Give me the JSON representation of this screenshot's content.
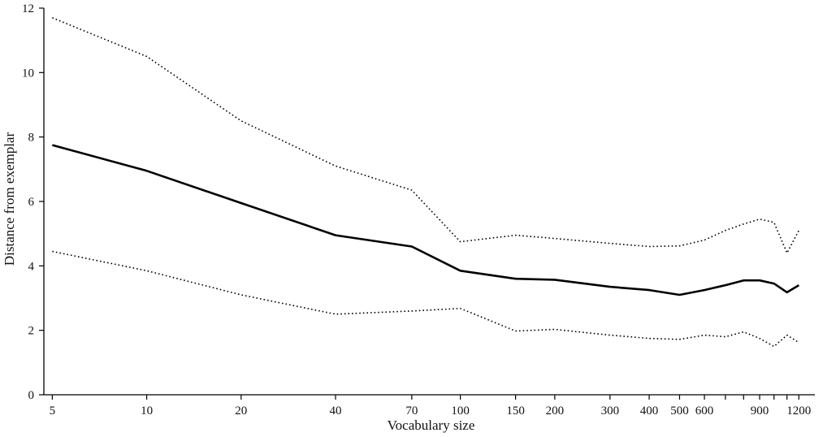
{
  "chart_data": {
    "type": "line",
    "title": "",
    "xlabel": "Vocabulary size",
    "ylabel": "Distance from exemplar",
    "x_scale": "log",
    "xlim": [
      4.7,
      1350
    ],
    "ylim": [
      0,
      12
    ],
    "grid": false,
    "legend": "none",
    "x": [
      5,
      10,
      20,
      40,
      70,
      100,
      150,
      200,
      300,
      400,
      500,
      600,
      700,
      800,
      900,
      1000,
      1100,
      1200
    ],
    "x_ticks": [
      5,
      10,
      20,
      40,
      70,
      100,
      150,
      200,
      300,
      400,
      500,
      600,
      700,
      800,
      900,
      1000,
      1100,
      1200
    ],
    "x_tick_labels": [
      "5",
      "10",
      "20",
      "40",
      "70",
      "100",
      "150",
      "200",
      "300",
      "400",
      "500",
      "600",
      "",
      "",
      "900",
      "",
      "",
      "1200"
    ],
    "y_ticks": [
      0,
      2,
      4,
      6,
      8,
      10,
      12
    ],
    "y_tick_labels": [
      "0",
      "2",
      "4",
      "6",
      "8",
      "10",
      "12"
    ],
    "series": [
      {
        "values": [
          11.7,
          10.5,
          8.5,
          7.1,
          6.35,
          4.75,
          4.95,
          4.85,
          4.7,
          4.6,
          4.62,
          4.8,
          5.1,
          5.3,
          5.45,
          5.35,
          4.4,
          5.1
        ],
        "color": "#000000",
        "line_style": "dotted"
      },
      {
        "values": [
          7.75,
          6.95,
          5.95,
          4.95,
          4.6,
          3.85,
          3.6,
          3.57,
          3.35,
          3.25,
          3.1,
          3.25,
          3.4,
          3.55,
          3.55,
          3.45,
          3.18,
          3.4
        ],
        "color": "#000000",
        "line_style": "solid"
      },
      {
        "values": [
          4.45,
          3.85,
          3.1,
          2.5,
          2.6,
          2.68,
          1.98,
          2.03,
          1.85,
          1.75,
          1.72,
          1.85,
          1.8,
          1.95,
          1.75,
          1.5,
          1.85,
          1.62
        ],
        "color": "#000000",
        "line_style": "dotted"
      }
    ]
  }
}
